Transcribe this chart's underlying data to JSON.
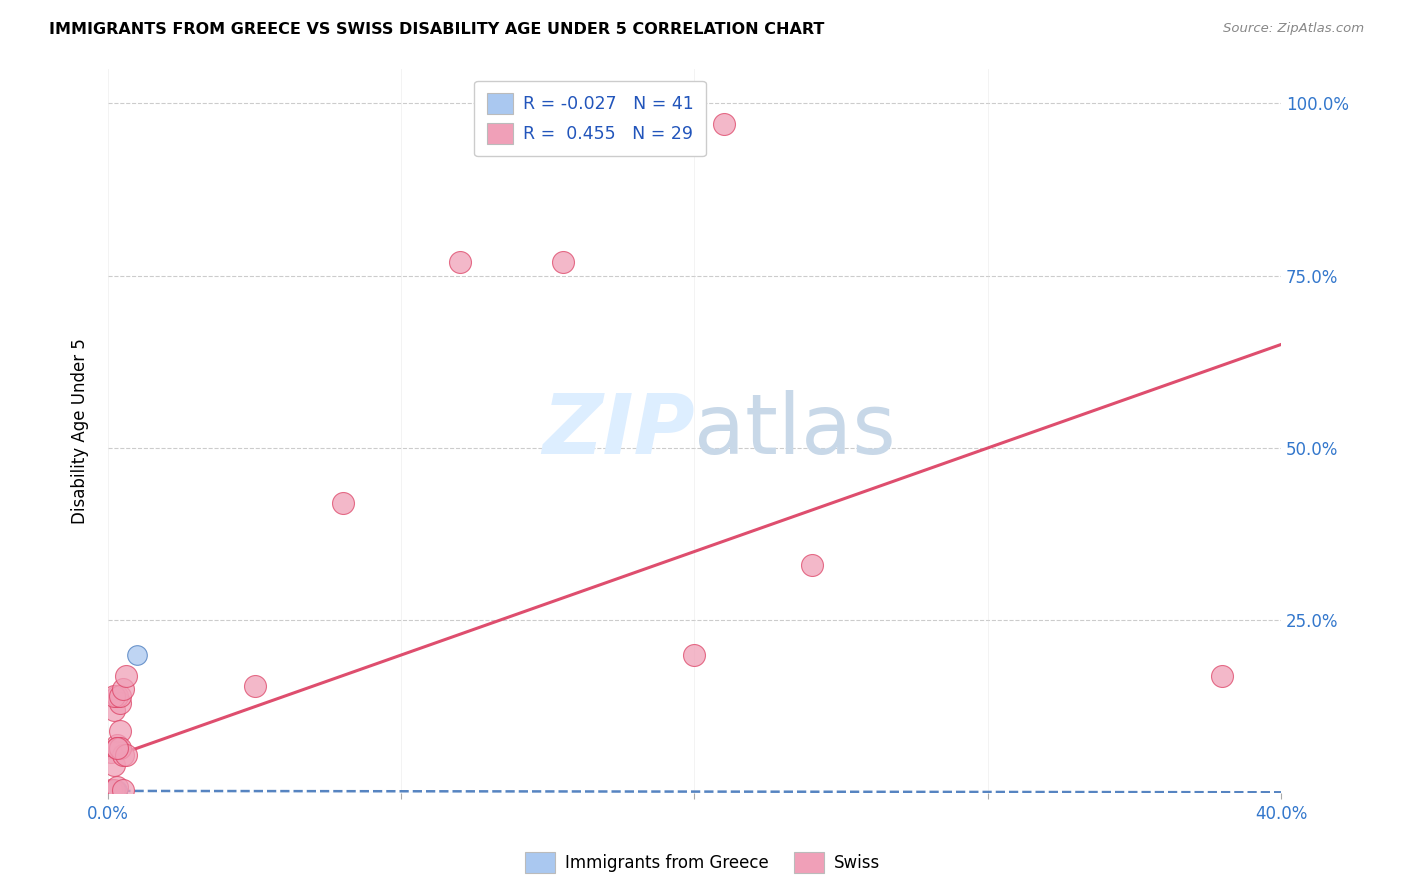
{
  "title": "IMMIGRANTS FROM GREECE VS SWISS DISABILITY AGE UNDER 5 CORRELATION CHART",
  "source": "Source: ZipAtlas.com",
  "xlabel": "Immigrants from Greece",
  "ylabel": "Disability Age Under 5",
  "xlim": [
    0.0,
    0.4
  ],
  "ylim": [
    0.0,
    1.05
  ],
  "blue_R": "-0.027",
  "blue_N": "41",
  "pink_R": "0.455",
  "pink_N": "29",
  "blue_color": "#aac8f0",
  "pink_color": "#f0a0b8",
  "blue_line_color": "#4477bb",
  "pink_line_color": "#dd4466",
  "watermark_color": "#ddeeff",
  "blue_points_x": [
    0.001,
    0.002,
    0.001,
    0.003,
    0.002,
    0.001,
    0.003,
    0.002,
    0.001,
    0.002,
    0.003,
    0.001,
    0.002,
    0.001,
    0.003,
    0.002,
    0.001,
    0.002,
    0.003,
    0.001,
    0.002,
    0.003,
    0.001,
    0.002,
    0.001,
    0.003,
    0.002,
    0.001,
    0.002,
    0.003,
    0.001,
    0.002,
    0.003,
    0.001,
    0.01,
    0.002,
    0.001,
    0.003,
    0.002,
    0.001,
    0.002
  ],
  "blue_points_y": [
    0.005,
    0.003,
    0.002,
    0.004,
    0.003,
    0.002,
    0.001,
    0.003,
    0.004,
    0.002,
    0.001,
    0.003,
    0.002,
    0.001,
    0.002,
    0.003,
    0.002,
    0.001,
    0.003,
    0.002,
    0.004,
    0.001,
    0.003,
    0.002,
    0.001,
    0.002,
    0.003,
    0.002,
    0.001,
    0.002,
    0.003,
    0.002,
    0.001,
    0.003,
    0.2,
    0.002,
    0.001,
    0.002,
    0.003,
    0.002,
    0.001
  ],
  "pink_points_x": [
    0.001,
    0.002,
    0.003,
    0.002,
    0.004,
    0.003,
    0.001,
    0.005,
    0.003,
    0.002,
    0.004,
    0.003,
    0.005,
    0.004,
    0.002,
    0.006,
    0.003,
    0.004,
    0.005,
    0.006,
    0.05,
    0.08,
    0.12,
    0.155,
    0.2,
    0.24,
    0.155,
    0.21,
    0.38
  ],
  "pink_points_y": [
    0.005,
    0.004,
    0.008,
    0.12,
    0.13,
    0.14,
    0.06,
    0.005,
    0.07,
    0.04,
    0.09,
    0.065,
    0.055,
    0.065,
    0.14,
    0.055,
    0.065,
    0.14,
    0.15,
    0.17,
    0.155,
    0.42,
    0.77,
    0.77,
    0.2,
    0.33,
    0.97,
    0.97,
    0.17
  ],
  "blue_line_x": [
    0.0,
    0.4
  ],
  "blue_line_y": [
    0.003,
    0.001
  ],
  "pink_line_x": [
    0.0,
    0.4
  ],
  "pink_line_y": [
    0.05,
    0.65
  ]
}
